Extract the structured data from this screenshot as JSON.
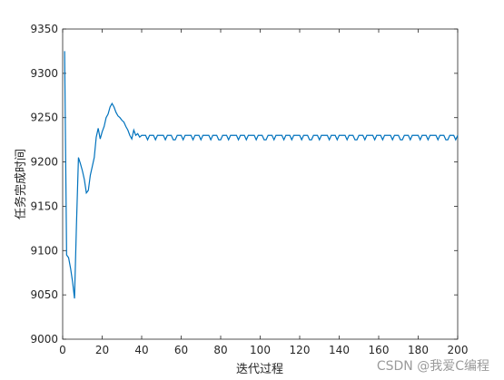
{
  "chart_data": {
    "type": "line",
    "title": "",
    "xlabel": "迭代过程",
    "ylabel": "任务完成时间",
    "xlim": [
      0,
      200
    ],
    "ylim": [
      9000,
      9350
    ],
    "grid": false,
    "x_ticks": [
      "0",
      "20",
      "40",
      "60",
      "80",
      "100",
      "120",
      "140",
      "160",
      "180",
      "200"
    ],
    "y_ticks": [
      "9000",
      "9050",
      "9100",
      "9150",
      "9200",
      "9250",
      "9300",
      "9350"
    ],
    "line_color": "#0072BD",
    "series": [
      {
        "name": "",
        "x": [
          1,
          2,
          3,
          4,
          5,
          6,
          7,
          8,
          9,
          10,
          11,
          12,
          13,
          14,
          15,
          16,
          17,
          18,
          19,
          20,
          21,
          22,
          23,
          24,
          25,
          26,
          27,
          28,
          29,
          30,
          31,
          32,
          33,
          34,
          35,
          36,
          37,
          38,
          39,
          40
        ],
        "values": [
          9325,
          9095,
          9092,
          9080,
          9065,
          9046,
          9130,
          9205,
          9198,
          9190,
          9180,
          9165,
          9168,
          9185,
          9195,
          9205,
          9228,
          9238,
          9226,
          9234,
          9240,
          9250,
          9254,
          9262,
          9266,
          9262,
          9256,
          9252,
          9250,
          9247,
          9245,
          9240,
          9236,
          9230,
          9226,
          9236,
          9230,
          9232,
          9228,
          9230
        ]
      }
    ],
    "steady_state": {
      "x_start": 40,
      "x_end": 200,
      "high": 9230,
      "low": 9225,
      "period": 4.6
    }
  },
  "watermark": "CSDN @我爱C编程"
}
